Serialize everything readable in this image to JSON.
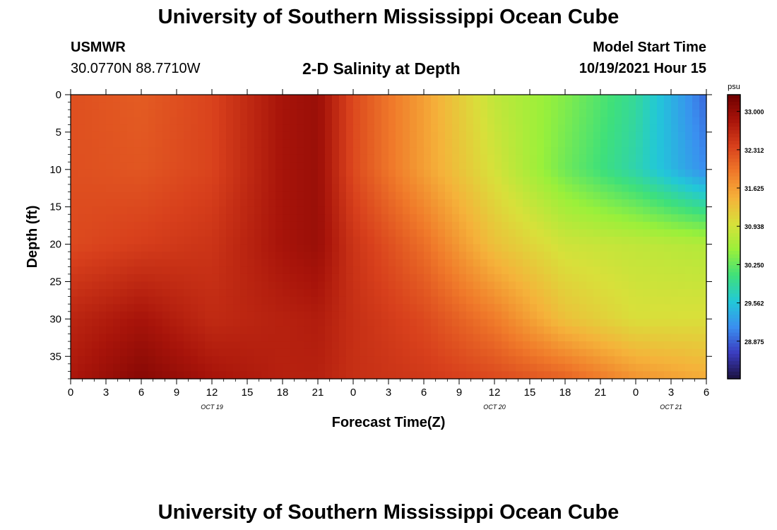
{
  "header": {
    "title": "University of Southern Mississippi Ocean Cube",
    "station": "USMWR",
    "coords": "30.0770N  88.7710W",
    "subtitle": "2-D Salinity at Depth",
    "model_label": "Model Start Time",
    "model_time": "10/19/2021 Hour 15"
  },
  "footer": {
    "title": "University of Southern Mississippi Ocean Cube"
  },
  "chart_data": {
    "type": "heatmap",
    "xlabel": "Forecast Time(Z)",
    "ylabel": "Depth (ft)",
    "x_tick_labels": [
      "0",
      "3",
      "6",
      "9",
      "12",
      "15",
      "18",
      "21",
      "0",
      "3",
      "6",
      "9",
      "12",
      "15",
      "18",
      "21",
      "0",
      "3",
      "6"
    ],
    "x_range_hours": [
      0,
      54
    ],
    "date_labels": [
      {
        "label": "OCT 19",
        "hour": 12
      },
      {
        "label": "OCT 20",
        "hour": 36
      },
      {
        "label": "OCT 21",
        "hour": 51
      }
    ],
    "y_ticks": [
      0,
      5,
      10,
      15,
      20,
      25,
      30,
      35
    ],
    "y_range": [
      0,
      38
    ],
    "y_inverted": true,
    "colorbar": {
      "unit": "psu",
      "ticks": [
        "33.000",
        "32.312",
        "31.625",
        "30.938",
        "30.250",
        "29.562",
        "28.875"
      ],
      "range": [
        28.2,
        33.3
      ],
      "colors": [
        "#1c1240",
        "#3b3cc0",
        "#3a8ff0",
        "#22c8d8",
        "#3fe07a",
        "#9af03a",
        "#d8e03a",
        "#f5b23a",
        "#f07a2a",
        "#d8401c",
        "#a8140a",
        "#6e0000"
      ]
    },
    "salinity_grid": {
      "x_hours": [
        0,
        6,
        12,
        18,
        21,
        24,
        30,
        36,
        42,
        48,
        54
      ],
      "depth_ft": [
        0,
        10,
        20,
        30,
        38
      ],
      "values": [
        [
          32.25,
          32.15,
          32.35,
          32.85,
          32.95,
          32.3,
          31.6,
          30.8,
          30.4,
          29.9,
          28.9
        ],
        [
          32.25,
          32.2,
          32.35,
          32.85,
          32.95,
          32.3,
          31.6,
          30.95,
          30.3,
          29.8,
          29.1
        ],
        [
          32.3,
          32.4,
          32.5,
          32.85,
          32.95,
          32.5,
          32.0,
          31.3,
          30.9,
          30.8,
          30.7
        ],
        [
          32.65,
          32.85,
          32.6,
          32.7,
          32.75,
          32.55,
          32.3,
          31.9,
          31.3,
          31.0,
          31.0
        ],
        [
          32.8,
          33.1,
          32.85,
          32.7,
          32.7,
          32.55,
          32.45,
          32.3,
          32.1,
          31.7,
          31.5
        ]
      ]
    }
  }
}
